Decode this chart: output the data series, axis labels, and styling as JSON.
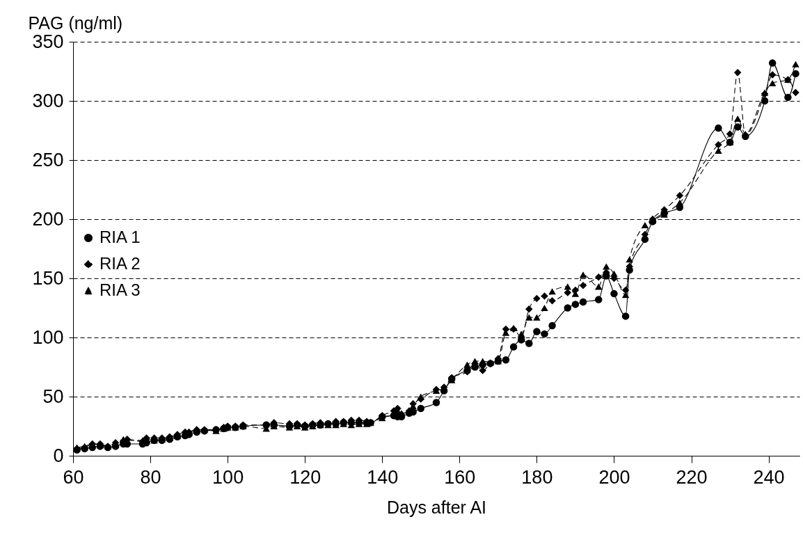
{
  "chart_data": {
    "type": "line",
    "xlabel": "Days after AI",
    "ylabel": "PAG (ng/ml)",
    "x": [
      61,
      63,
      65,
      67,
      69,
      71,
      73,
      74,
      78,
      79,
      81,
      83,
      85,
      87,
      89,
      90,
      92,
      94,
      97,
      99,
      100,
      102,
      104,
      110,
      112,
      116,
      118,
      120,
      122,
      124,
      126,
      128,
      130,
      132,
      134,
      136,
      137,
      140,
      143,
      144,
      145,
      147,
      148,
      150,
      154,
      156,
      158,
      162,
      164,
      166,
      168,
      170,
      172,
      174,
      176,
      178,
      180,
      182,
      184,
      188,
      190,
      192,
      196,
      198,
      200,
      203,
      204,
      208,
      210,
      213,
      217,
      227,
      230,
      232,
      234,
      239,
      241,
      245,
      247
    ],
    "series": [
      {
        "name": "RIA 1",
        "color": "#000000",
        "marker": "circle",
        "line_style": "solid",
        "values": [
          5,
          6,
          7,
          8,
          7,
          8,
          10,
          10,
          10,
          11,
          13,
          13,
          14,
          16,
          17,
          18,
          20,
          21,
          22,
          23,
          24,
          24,
          25,
          26,
          26,
          25,
          26,
          25,
          26,
          26,
          27,
          27,
          28,
          28,
          28,
          28,
          28,
          33,
          34,
          33,
          33,
          36,
          37,
          40,
          45,
          55,
          65,
          72,
          75,
          77,
          78,
          80,
          81,
          92,
          98,
          95,
          105,
          103,
          110,
          125,
          128,
          130,
          132,
          152,
          137,
          118,
          157,
          183,
          198,
          205,
          210,
          277,
          265,
          278,
          270,
          300,
          332,
          303,
          323
        ]
      },
      {
        "name": "RIA 2",
        "color": "#000000",
        "marker": "diamond",
        "line_style": "dashed",
        "values": [
          6,
          7,
          10,
          10,
          8,
          11,
          12,
          14,
          12,
          15,
          15,
          15,
          16,
          18,
          20,
          20,
          22,
          22,
          22,
          24,
          25,
          25,
          26,
          26,
          28,
          27,
          27,
          26,
          27,
          28,
          27,
          29,
          29,
          30,
          30,
          29,
          28,
          34,
          38,
          40,
          35,
          38,
          44,
          48,
          56,
          58,
          66,
          71,
          78,
          72,
          78,
          82,
          107,
          107,
          100,
          124,
          133,
          135,
          131,
          138,
          140,
          144,
          151,
          155,
          150,
          140,
          160,
          187,
          200,
          208,
          220,
          263,
          272,
          324,
          271,
          306,
          322,
          318,
          307
        ]
      },
      {
        "name": "RIA 3",
        "color": "#000000",
        "marker": "triangle",
        "line_style": "dashed",
        "values": [
          7,
          8,
          10,
          9,
          8,
          10,
          14,
          13,
          13,
          14,
          13,
          14,
          15,
          17,
          18,
          20,
          22,
          22,
          21,
          23,
          24,
          24,
          25,
          23,
          25,
          24,
          25,
          24,
          25,
          26,
          26,
          26,
          27,
          26,
          27,
          27,
          28,
          32,
          35,
          37,
          36,
          38,
          42,
          50,
          55,
          57,
          64,
          77,
          80,
          80,
          79,
          80,
          104,
          108,
          103,
          117,
          117,
          125,
          139,
          143,
          137,
          153,
          143,
          160,
          154,
          136,
          166,
          195,
          199,
          204,
          214,
          258,
          265,
          285,
          272,
          307,
          315,
          318,
          331
        ]
      }
    ],
    "xlim": [
      60,
      248
    ],
    "xticks": [
      60,
      80,
      100,
      120,
      140,
      160,
      180,
      200,
      220,
      240
    ],
    "ylim": [
      0,
      350
    ],
    "yticks": [
      0,
      50,
      100,
      150,
      200,
      250,
      300,
      350
    ],
    "grid": "y",
    "legend": "left"
  }
}
